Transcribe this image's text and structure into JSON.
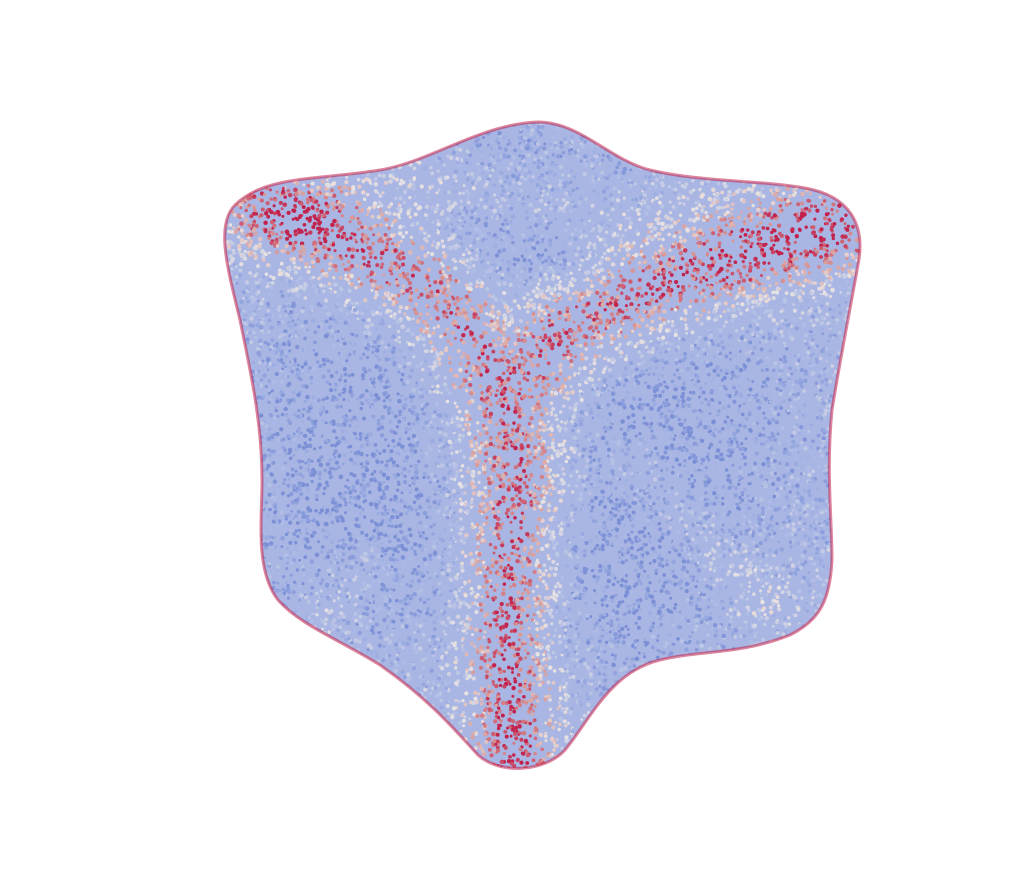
{
  "scene": {
    "background_color": "#ffffff",
    "subject": "point-cloud",
    "shape": "rounded-cube-with-bulged-faces",
    "rendering": "dense-colored-points",
    "colormap": "coolwarm",
    "colors": {
      "low": "#7b8fd6",
      "mid_low": "#aab9e6",
      "neutral": "#e9e3e2",
      "mid_high": "#d89a98",
      "high": "#c2234d"
    },
    "features": {
      "corner_ridges": 3,
      "ridge_color": "high",
      "face_color": "low",
      "silhouette_edge_color": "high"
    }
  }
}
